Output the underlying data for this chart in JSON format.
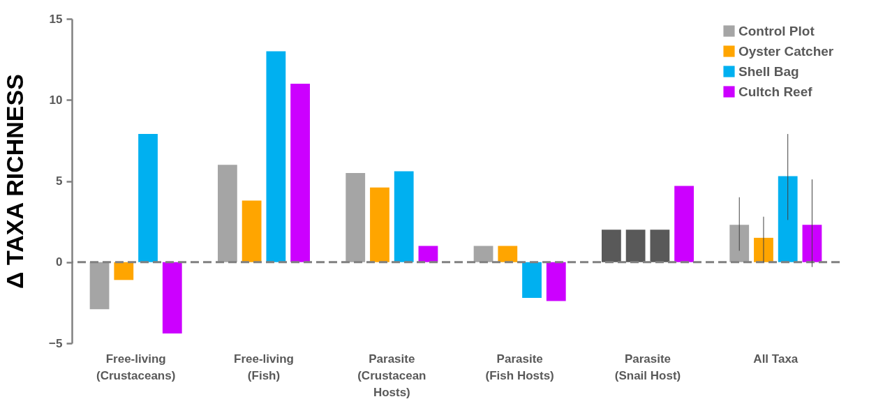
{
  "chart_data": {
    "type": "bar",
    "ylabel": "Δ TAXA RICHNESS",
    "categories": [
      "Free-living (Crustaceans)",
      "Free-living (Fish)",
      "Parasite (Crustacean Hosts)",
      "Parasite (Fish Hosts)",
      "Parasite (Snail Host)",
      "All Taxa"
    ],
    "series": [
      {
        "name": "Control Plot",
        "color": "#a5a5a5",
        "colors": [
          "#a5a5a5",
          "#a5a5a5",
          "#a5a5a5",
          "#a5a5a5",
          "#595959",
          "#a5a5a5"
        ],
        "values": [
          -2.9,
          6,
          5.5,
          1,
          2,
          2.3
        ],
        "errors": [
          null,
          null,
          null,
          null,
          null,
          [
            0.7,
            4.0
          ]
        ]
      },
      {
        "name": "Oyster Catcher",
        "color": "#ffa500",
        "colors": [
          "#ffa500",
          "#ffa500",
          "#ffa500",
          "#ffa500",
          "#595959",
          "#ffa500"
        ],
        "values": [
          -1.1,
          3.8,
          4.6,
          1,
          2,
          1.5
        ],
        "errors": [
          null,
          null,
          null,
          null,
          null,
          [
            0,
            2.8
          ]
        ]
      },
      {
        "name": "Shell Bag",
        "color": "#00b0f0",
        "colors": [
          "#00b0f0",
          "#00b0f0",
          "#00b0f0",
          "#00b0f0",
          "#595959",
          "#00b0f0"
        ],
        "values": [
          7.9,
          13,
          5.6,
          -2.2,
          2,
          5.3
        ],
        "errors": [
          null,
          null,
          null,
          null,
          null,
          [
            2.6,
            7.9
          ]
        ]
      },
      {
        "name": "Cultch Reef",
        "color": "#cc00ff",
        "values": [
          -4.4,
          11,
          1,
          -2.4,
          4.7,
          2.3
        ],
        "errors": [
          null,
          null,
          null,
          null,
          null,
          [
            -0.3,
            5.1
          ]
        ]
      }
    ],
    "ylim": [
      -5,
      15
    ],
    "yticks": [
      -5,
      0,
      5,
      10,
      15
    ],
    "ref_lines": [
      {
        "axis": "y",
        "value": 0,
        "color": "#808080",
        "line_style": "dashed"
      }
    ],
    "legend": "top right"
  }
}
